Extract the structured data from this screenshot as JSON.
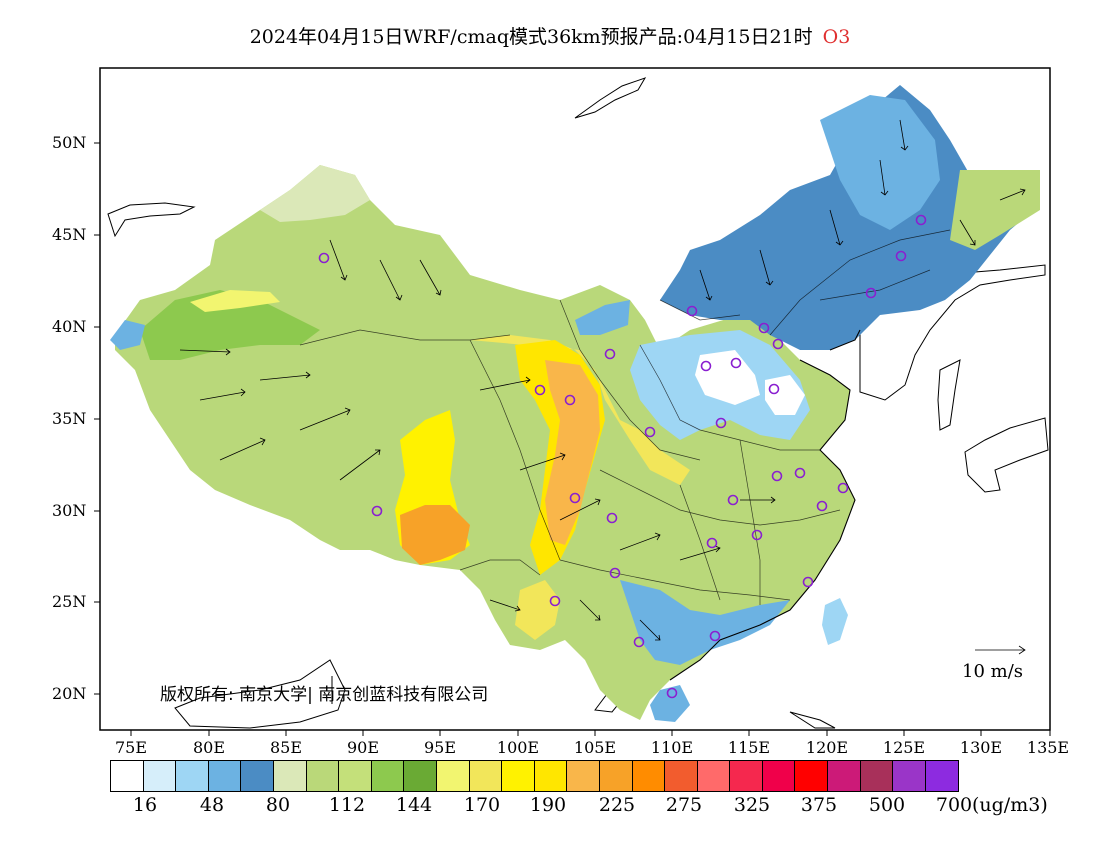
{
  "title": {
    "main": "2024年04月15日WRF/cmaq模式36km预报产品:04月15日21时",
    "species": "O3"
  },
  "map": {
    "lat_labels": [
      "50N",
      "45N",
      "40N",
      "35N",
      "30N",
      "25N",
      "20N"
    ],
    "lon_labels": [
      "75E",
      "80E",
      "85E",
      "90E",
      "95E",
      "100E",
      "105E",
      "110E",
      "115E",
      "120E",
      "125E",
      "130E",
      "135E"
    ],
    "copyright": "版权所有: 南京大学| 南京创蓝科技有限公司",
    "wind_scale_label": "10 m/s",
    "station_marker": "circle-marker"
  },
  "legend": {
    "colors": [
      "#ffffff",
      "#d6eefa",
      "#9ed6f4",
      "#6cb2e2",
      "#4b8cc4",
      "#dbe8b8",
      "#bad879",
      "#c4e07a",
      "#8dc94e",
      "#6aaa34",
      "#f2f570",
      "#f2e65a",
      "#fff200",
      "#ffe600",
      "#f9b64a",
      "#f7a228",
      "#ff8c00",
      "#f25c2e",
      "#ff6a6a",
      "#f5284e",
      "#f0004a",
      "#ff0000",
      "#cc1a78",
      "#a8305a",
      "#9a35c8",
      "#8d2be0"
    ],
    "labels": [
      "16",
      "48",
      "80",
      "112",
      "144",
      "170",
      "190",
      "225",
      "275",
      "325",
      "375",
      "500",
      "700"
    ],
    "unit": "(ug/m3)"
  }
}
